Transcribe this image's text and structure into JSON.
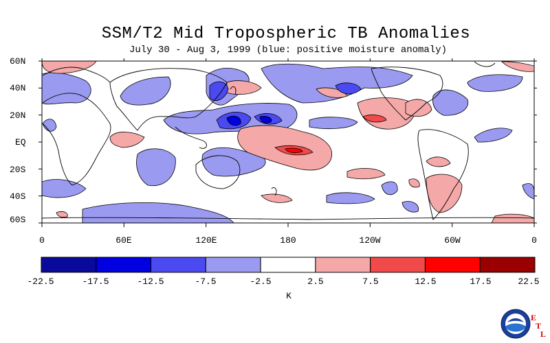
{
  "title": "SSM/T2 Mid Tropospheric TB Anomalies",
  "subtitle": "July 30 - Aug 3, 1999 (blue: positive moisture anomaly)",
  "map": {
    "lat_labels": [
      "60N",
      "40N",
      "20N",
      "EQ",
      "20S",
      "40S",
      "60S"
    ],
    "lon_labels": [
      "0",
      "60E",
      "120E",
      "180",
      "120W",
      "60W",
      "0"
    ]
  },
  "colorbar": {
    "unit": "K",
    "ticks": [
      "-22.5",
      "-17.5",
      "-12.5",
      "-7.5",
      "-2.5",
      "2.5",
      "7.5",
      "12.5",
      "17.5",
      "22.5"
    ],
    "colors": [
      "#0a0a9a",
      "#0000e0",
      "#4a4af0",
      "#9a9af0",
      "#ffffff",
      "#f4a8a8",
      "#f04a4a",
      "#ff0000",
      "#9a0000"
    ]
  },
  "logo": {
    "name": "NOAA",
    "etl_letters": [
      "E",
      "T",
      "L"
    ]
  },
  "colors": {
    "blue_light": "#9a9af0",
    "blue_mid": "#4a4af0",
    "blue_dark": "#0000e0",
    "red_light": "#f4a8a8",
    "red_mid": "#f04a4a",
    "red_dark": "#ff0000"
  }
}
